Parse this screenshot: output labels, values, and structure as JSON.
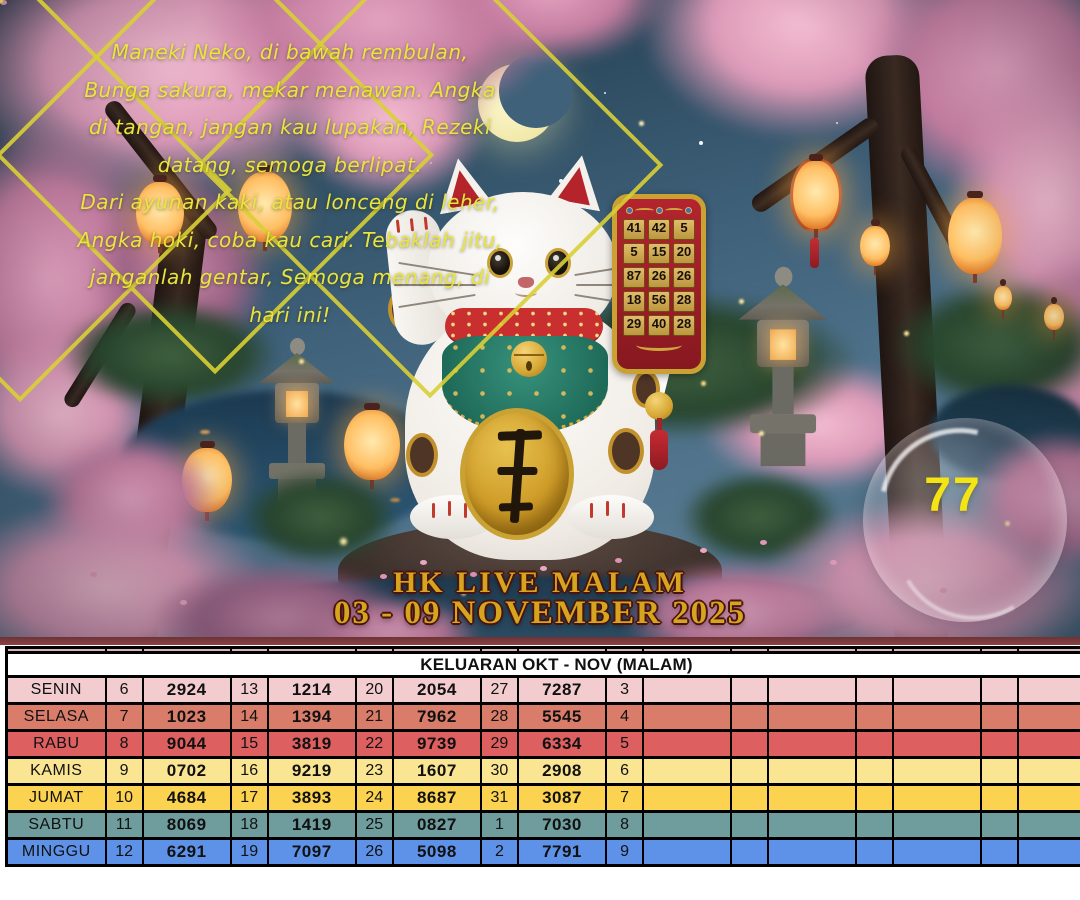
{
  "hero": {
    "poem_lines": [
      "Maneki Neko, di bawah rembulan,",
      "Bunga sakura, mekar menawan. Angka",
      "di tangan, jangan kau lupakan, Rezeki",
      "datang, semoga berlipat.",
      "Dari ayunan kaki, atau lonceng di leher,",
      "Angka hoki, coba kau cari. Tebaklah jitu,",
      "janganlah gentar, Semoga menang, di",
      "hari ini!"
    ],
    "title_line1": "HK LIVE MALAM",
    "title_line2": "03 - 09 NOVEMBER 2025",
    "bubble_number": "77",
    "board_numbers": [
      [
        "41",
        "42",
        "5"
      ],
      [
        "5",
        "15",
        "20"
      ],
      [
        "87",
        "26",
        "26"
      ],
      [
        "18",
        "56",
        "28"
      ],
      [
        "29",
        "40",
        "28"
      ]
    ]
  },
  "table": {
    "header": "KELUARAN OKT - NOV (MALAM)",
    "rows": [
      {
        "day": "SENIN",
        "bg": "#f2cccf",
        "cells": [
          "6",
          "2924",
          "13",
          "1214",
          "20",
          "2054",
          "27",
          "7287",
          "3",
          "",
          "",
          "",
          "",
          "",
          "",
          ""
        ]
      },
      {
        "day": "SELASA",
        "bg": "#d97c69",
        "cells": [
          "7",
          "1023",
          "14",
          "1394",
          "21",
          "7962",
          "28",
          "5545",
          "4",
          "",
          "",
          "",
          "",
          "",
          "",
          ""
        ]
      },
      {
        "day": "RABU",
        "bg": "#dd5f60",
        "cells": [
          "8",
          "9044",
          "15",
          "3819",
          "22",
          "9739",
          "29",
          "6334",
          "5",
          "",
          "",
          "",
          "",
          "",
          "",
          ""
        ]
      },
      {
        "day": "KAMIS",
        "bg": "#fae592",
        "cells": [
          "9",
          "0702",
          "16",
          "9219",
          "23",
          "1607",
          "30",
          "2908",
          "6",
          "",
          "",
          "",
          "",
          "",
          "",
          ""
        ]
      },
      {
        "day": "JUMAT",
        "bg": "#fcd350",
        "cells": [
          "10",
          "4684",
          "17",
          "3893",
          "24",
          "8687",
          "31",
          "3087",
          "7",
          "",
          "",
          "",
          "",
          "",
          "",
          ""
        ]
      },
      {
        "day": "SABTU",
        "bg": "#6f9d9e",
        "cells": [
          "11",
          "8069",
          "18",
          "1419",
          "25",
          "0827",
          "1",
          "7030",
          "8",
          "",
          "",
          "",
          "",
          "",
          "",
          ""
        ]
      },
      {
        "day": "MINGGU",
        "bg": "#5e92e8",
        "cells": [
          "12",
          "6291",
          "19",
          "7097",
          "26",
          "5098",
          "2",
          "7791",
          "9",
          "",
          "",
          "",
          "",
          "",
          "",
          ""
        ]
      }
    ]
  },
  "colors": {
    "poem_text": "#e9e43f",
    "title_gold": "#d6a51f",
    "bubble_number_yellow": "#f4e414",
    "diamond_gold": "#d8cf35"
  }
}
